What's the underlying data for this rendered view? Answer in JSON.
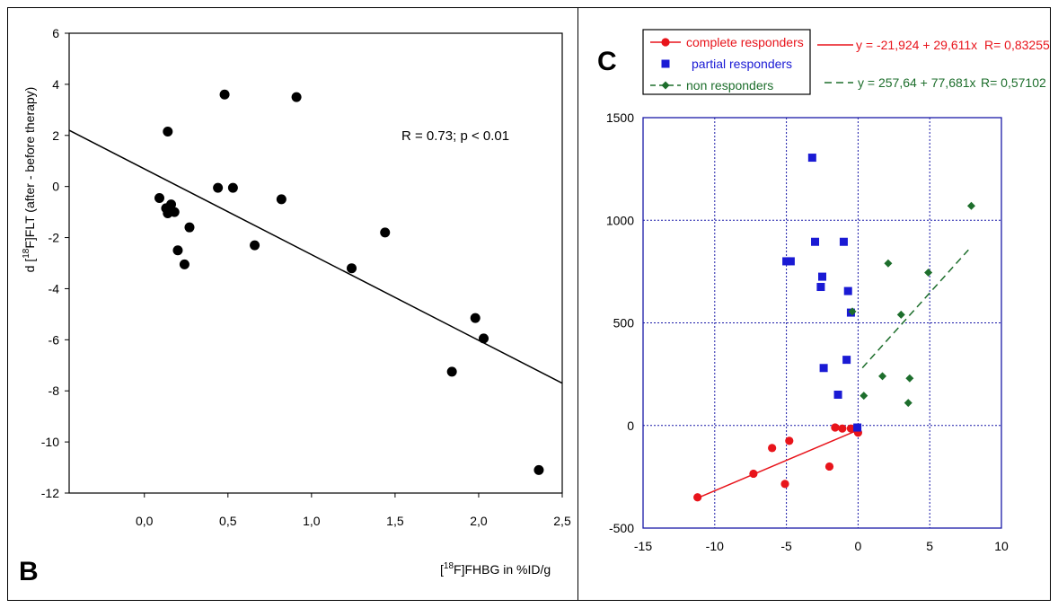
{
  "panels": {
    "left_label": "B",
    "right_label": "C"
  },
  "chart_data": [
    {
      "type": "scatter",
      "title": "",
      "ylabel": "d [18F]FLT (after - before therapy)",
      "ylabel_parts": {
        "pre": "d [",
        "sup": "18",
        "post": "F]FLT (after - before therapy)"
      },
      "xlabel": "[18F]FHBG in %ID/g",
      "xlabel_parts": {
        "pre": "[",
        "sup": "18",
        "post": "F]FHBG in %ID/g"
      },
      "xlim": [
        -0.45,
        2.5
      ],
      "ylim": [
        -12,
        6
      ],
      "x_ticks": [
        0.0,
        0.5,
        1.0,
        1.5,
        2.0,
        2.5
      ],
      "x_tick_labels": [
        "0,0",
        "0,5",
        "1,0",
        "1,5",
        "2,0",
        "2,5"
      ],
      "y_ticks": [
        6,
        4,
        2,
        0,
        -2,
        -4,
        -6,
        -8,
        -10,
        -12
      ],
      "y_tick_labels": [
        "6",
        "4",
        "2",
        "0",
        "-2",
        "-4",
        "-6",
        "-8",
        "-10",
        "-12"
      ],
      "grid": false,
      "annotation": "R = 0.73; p < 0.01",
      "series": [
        {
          "color": "#000000",
          "marker": "circle",
          "points": [
            [
              0.14,
              2.15
            ],
            [
              0.48,
              3.6
            ],
            [
              0.91,
              3.5
            ],
            [
              0.09,
              -0.45
            ],
            [
              0.13,
              -0.85
            ],
            [
              0.14,
              -1.05
            ],
            [
              0.16,
              -0.7
            ],
            [
              0.18,
              -1.0
            ],
            [
              0.2,
              -2.5
            ],
            [
              0.24,
              -3.05
            ],
            [
              0.27,
              -1.6
            ],
            [
              0.44,
              -0.05
            ],
            [
              0.53,
              -0.05
            ],
            [
              0.66,
              -2.3
            ],
            [
              0.82,
              -0.5
            ],
            [
              1.24,
              -3.2
            ],
            [
              1.44,
              -1.8
            ],
            [
              1.84,
              -7.25
            ],
            [
              1.98,
              -5.15
            ],
            [
              2.03,
              -5.95
            ],
            [
              2.36,
              -11.1
            ]
          ]
        }
      ],
      "fit_line": {
        "x": [
          -0.45,
          2.5
        ],
        "y": [
          2.2,
          -7.7
        ]
      }
    },
    {
      "type": "scatter",
      "title": "",
      "xlim": [
        -15,
        10
      ],
      "ylim": [
        -500,
        1500
      ],
      "x_ticks": [
        -15,
        -10,
        -5,
        0,
        5,
        10
      ],
      "x_tick_labels": [
        "-15",
        "-10",
        "-5",
        "0",
        "5",
        "10"
      ],
      "y_ticks": [
        1500,
        1000,
        500,
        0,
        -500
      ],
      "y_tick_labels": [
        "1500",
        "1000",
        "500",
        "0",
        "-500"
      ],
      "grid": true,
      "grid_color": "#1a1aa8",
      "legend_position": "top-left",
      "series": [
        {
          "name": "complete responders",
          "color": "#e8141b",
          "marker": "circle",
          "equation": "y = -21,924 + 29,611x",
          "r_text": "R= 0,83255",
          "line_style": "solid",
          "points": [
            [
              -11.2,
              -350
            ],
            [
              -7.3,
              -235
            ],
            [
              -6.0,
              -110
            ],
            [
              -5.1,
              -285
            ],
            [
              -4.8,
              -75
            ],
            [
              -2.0,
              -200
            ],
            [
              -1.6,
              -10
            ],
            [
              -1.1,
              -15
            ],
            [
              -0.5,
              -15
            ],
            [
              -0.1,
              -20
            ],
            [
              0.0,
              -35
            ]
          ],
          "fit_line": {
            "x": [
              -11.2,
              0
            ],
            "y": [
              -353.6,
              -21.9
            ]
          }
        },
        {
          "name": "partial responders",
          "color": "#1a1ad4",
          "marker": "square",
          "points": [
            [
              -3.2,
              1305
            ],
            [
              -5.0,
              800
            ],
            [
              -4.7,
              800
            ],
            [
              -3.0,
              895
            ],
            [
              -1.0,
              895
            ],
            [
              -2.5,
              725
            ],
            [
              -2.6,
              675
            ],
            [
              -0.7,
              655
            ],
            [
              -0.5,
              550
            ],
            [
              -2.4,
              280
            ],
            [
              -0.8,
              320
            ],
            [
              -1.4,
              150
            ],
            [
              -0.05,
              -10
            ]
          ]
        },
        {
          "name": "non responders",
          "color": "#1d6e2c",
          "marker": "diamond",
          "equation": "y = 257,64 + 77,681x",
          "r_text": "R= 0,57102",
          "line_style": "dashed",
          "points": [
            [
              7.9,
              1070
            ],
            [
              2.1,
              790
            ],
            [
              4.9,
              745
            ],
            [
              3.0,
              540
            ],
            [
              -0.4,
              555
            ],
            [
              1.7,
              240
            ],
            [
              3.6,
              230
            ],
            [
              0.4,
              145
            ],
            [
              3.5,
              110
            ]
          ],
          "fit_line": {
            "x": [
              0.3,
              7.7
            ],
            "y": [
              280.9,
              855.8
            ]
          }
        }
      ]
    }
  ]
}
